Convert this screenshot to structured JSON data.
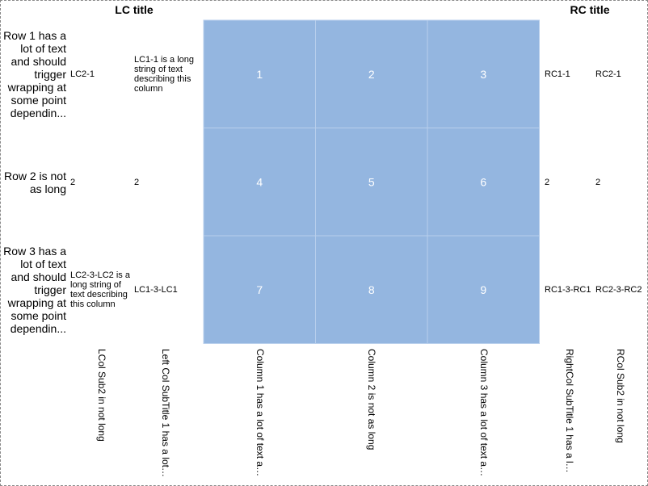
{
  "chart_data": {
    "type": "heatmap",
    "titles": {
      "left": "LC title",
      "right": "RC title"
    },
    "rows": [
      "Row 1 has a lot of text and should trigger wrapping at some point dependin...",
      "Row 2 is not as long",
      "Row 3 has a lot of text and should trigger wrapping at some point dependin..."
    ],
    "columns": [
      "Column 1 has a lot of text an...",
      "Column 2 is not as long",
      "Column 3 has a lot of text an..."
    ],
    "values": [
      [
        1,
        2,
        3
      ],
      [
        4,
        5,
        6
      ],
      [
        7,
        8,
        9
      ]
    ],
    "cell_color": "#94b6e0",
    "left_columns": [
      {
        "header": "LCol Sub2 in not long",
        "cells": [
          "LC2-1",
          "2",
          "LC2-3-LC2 is a long string of text describing this column"
        ]
      },
      {
        "header": "Left Col SubTitle 1 has a lot o...",
        "cells": [
          "LC1-1 is a long string of text describing this column",
          "2",
          "LC1-3-LC1"
        ]
      }
    ],
    "right_columns": [
      {
        "header": "RightCol SubTitle 1 has a lot...",
        "cells": [
          "RC1-1",
          "2",
          "RC1-3-RC1"
        ]
      },
      {
        "header": "RCol Sub2 in not long",
        "cells": [
          "RC2-1",
          "2",
          "RC2-3-RC2"
        ]
      }
    ]
  }
}
